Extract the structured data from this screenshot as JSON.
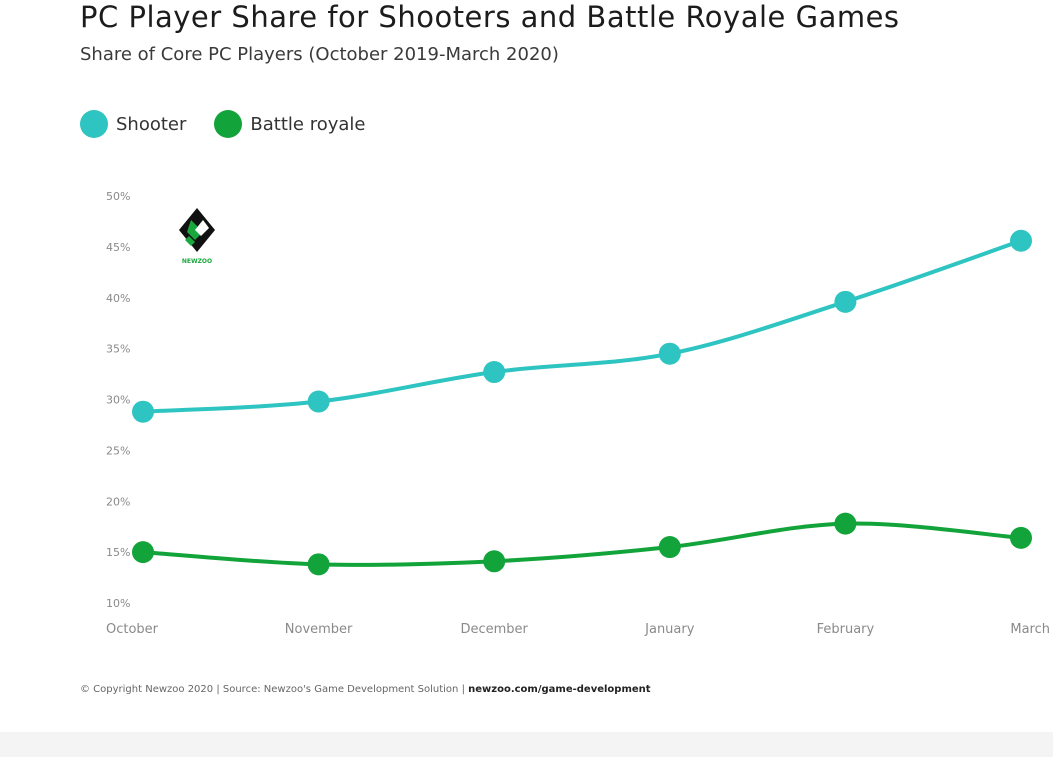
{
  "chart_data": {
    "type": "line",
    "title": "PC Player Share for Shooters and Battle Royale Games",
    "subtitle": "Share of Core PC Players (October 2019-March 2020)",
    "xlabel": "",
    "ylabel": "",
    "categories": [
      "October",
      "November",
      "December",
      "January",
      "February",
      "March"
    ],
    "ylim": [
      10,
      50
    ],
    "yticks": [
      "10%",
      "15%",
      "20%",
      "25%",
      "30%",
      "35%",
      "40%",
      "45%",
      "50%"
    ],
    "grid": false,
    "legend_position": "top-left",
    "series": [
      {
        "name": "Shooter",
        "color": "#2ec4c1",
        "values": [
          28.8,
          29.8,
          32.7,
          34.5,
          39.6,
          45.6
        ]
      },
      {
        "name": "Battle royale",
        "color": "#12a43a",
        "values": [
          15.0,
          13.8,
          14.1,
          15.5,
          17.8,
          16.4
        ]
      }
    ]
  },
  "footer": {
    "copyright": "© Copyright Newzoo 2020 | Source: Newzoo's Game Development Solution |",
    "link": "newzoo.com/game-development"
  },
  "logo": {
    "text": "NEWZOO",
    "icon": "newzoo-logo-icon"
  }
}
